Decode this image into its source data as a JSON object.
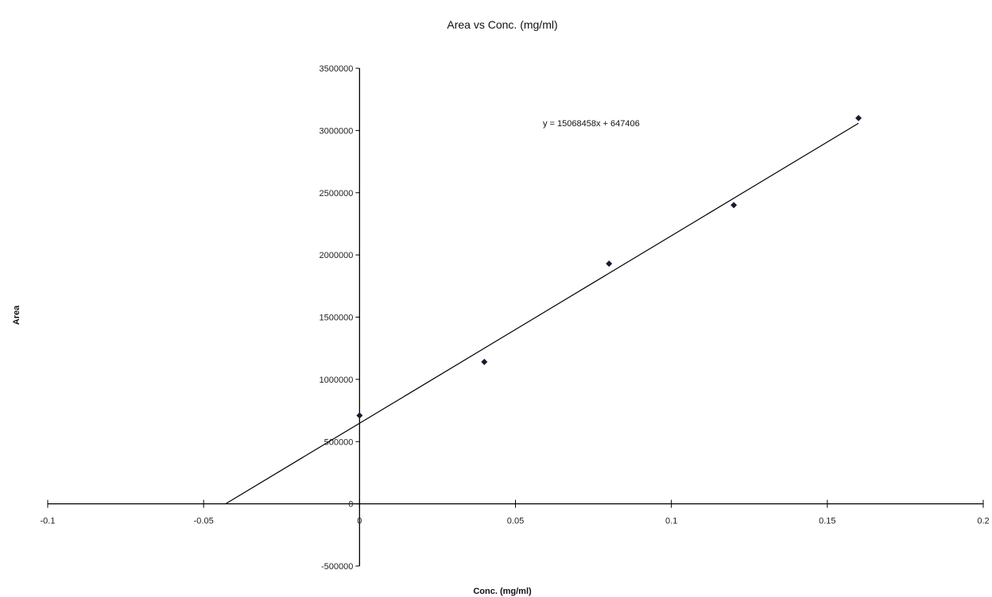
{
  "chart_data": {
    "type": "scatter",
    "title": "Area vs Conc. (mg/ml)",
    "xlabel": "Conc. (mg/ml)",
    "ylabel": "Area",
    "xlim": [
      -0.1,
      0.2
    ],
    "ylim": [
      -500000,
      3500000
    ],
    "x_ticks": [
      -0.1,
      -0.05,
      0,
      0.05,
      0.1,
      0.15,
      0.2
    ],
    "y_ticks": [
      -500000,
      0,
      500000,
      1000000,
      1500000,
      2000000,
      2500000,
      3000000,
      3500000
    ],
    "grid": false,
    "legend": "none",
    "series": [
      {
        "x": [
          0,
          0.04,
          0.08,
          0.12,
          0.16
        ],
        "y": [
          710000,
          1140000,
          1930000,
          2400000,
          3100000
        ]
      }
    ],
    "trendline": {
      "equation": "y = 15068458x + 647406",
      "slope": 15068458,
      "intercept": 647406,
      "x_range": [
        -0.043,
        0.16
      ]
    },
    "colors": {
      "axis": "#000000",
      "marker": "#1a1a2e",
      "trendline": "#000000"
    }
  }
}
